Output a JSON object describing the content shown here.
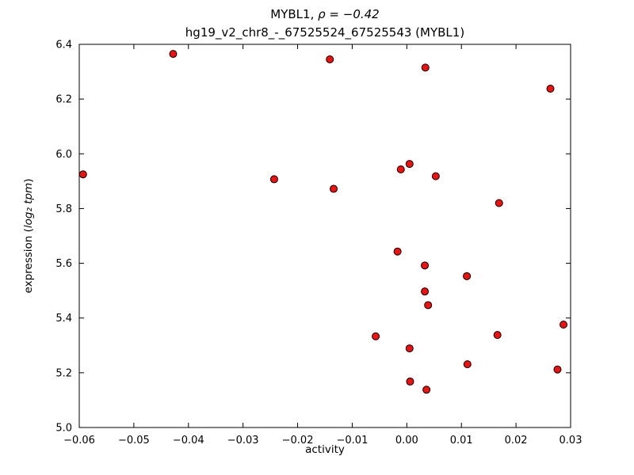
{
  "chart_data": {
    "type": "scatter",
    "title_main_prefix": "MYBL1, ",
    "title_main_math": "ρ = −0.42",
    "title_sub": "hg19_v2_chr8_-_67525524_67525543 (MYBL1)",
    "xlabel": "activity",
    "ylabel_prefix": "expression (",
    "ylabel_math": "log₂ tpm",
    "ylabel_suffix": ")",
    "xlim": [
      -0.06,
      0.03
    ],
    "ylim": [
      5.0,
      6.4
    ],
    "xticks": [
      -0.06,
      -0.05,
      -0.04,
      -0.03,
      -0.02,
      -0.01,
      0.0,
      0.01,
      0.02,
      0.03
    ],
    "xtick_labels": [
      "−0.06",
      "−0.05",
      "−0.04",
      "−0.03",
      "−0.02",
      "−0.01",
      "0.00",
      "0.01",
      "0.02",
      "0.03"
    ],
    "yticks": [
      5.0,
      5.2,
      5.4,
      5.6,
      5.8,
      6.0,
      6.2,
      6.4
    ],
    "ytick_labels": [
      "5.0",
      "5.2",
      "5.4",
      "5.6",
      "5.8",
      "6.0",
      "6.2",
      "6.4"
    ],
    "grid": false,
    "legend": null,
    "marker": {
      "shape": "circle",
      "fill": "#ee1111",
      "edge": "#000000",
      "radius_px": 4.5
    },
    "axis_color": "#000000",
    "points": [
      [
        -0.0593,
        5.925
      ],
      [
        -0.0428,
        6.365
      ],
      [
        -0.0141,
        6.345
      ],
      [
        0.0034,
        6.315
      ],
      [
        0.0263,
        6.238
      ],
      [
        -0.0243,
        5.907
      ],
      [
        -0.0134,
        5.872
      ],
      [
        -0.0011,
        5.943
      ],
      [
        0.0005,
        5.963
      ],
      [
        0.0053,
        5.918
      ],
      [
        0.0169,
        5.82
      ],
      [
        -0.0017,
        5.643
      ],
      [
        0.0033,
        5.592
      ],
      [
        0.011,
        5.553
      ],
      [
        0.0033,
        5.497
      ],
      [
        0.0039,
        5.447
      ],
      [
        -0.0057,
        5.333
      ],
      [
        0.0166,
        5.338
      ],
      [
        0.0287,
        5.376
      ],
      [
        0.0005,
        5.289
      ],
      [
        0.0111,
        5.231
      ],
      [
        0.0276,
        5.212
      ],
      [
        0.0006,
        5.168
      ],
      [
        0.0036,
        5.138
      ]
    ]
  }
}
